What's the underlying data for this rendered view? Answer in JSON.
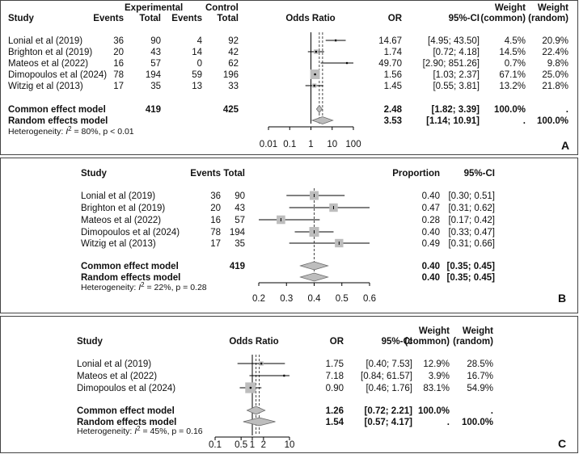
{
  "chart_data": [
    {
      "type": "forest",
      "panel_label": "A",
      "measure": "Odds Ratio",
      "scale": "log",
      "xlim": [
        0.01,
        100
      ],
      "ticks": [
        "0.01",
        "0.1",
        "1",
        "10",
        "100"
      ],
      "headers": {
        "study": "Study",
        "exp_group": "Experimental",
        "ctrl_group": "Control",
        "events": "Events",
        "total": "Total",
        "plot": "Odds Ratio",
        "est": "OR",
        "ci": "95%-CI",
        "weight": "Weight",
        "common": "(common)",
        "random": "(random)"
      },
      "studies": [
        {
          "name": "Lonial et al (2019)",
          "e_events": "36",
          "e_total": "90",
          "c_events": "4",
          "c_total": "92",
          "est": 14.67,
          "lo": 4.95,
          "hi": 43.5,
          "est_text": "14.67",
          "ci_text": "[4.95; 43.50]",
          "w_common": "4.5%",
          "w_random": "20.9%"
        },
        {
          "name": "Brighton et al (2019)",
          "e_events": "20",
          "e_total": "43",
          "c_events": "14",
          "c_total": "42",
          "est": 1.74,
          "lo": 0.72,
          "hi": 4.18,
          "est_text": "1.74",
          "ci_text": "[0.72; 4.18]",
          "w_common": "14.5%",
          "w_random": "22.4%"
        },
        {
          "name": "Mateos et al (2022)",
          "e_events": "16",
          "e_total": "57",
          "c_events": "0",
          "c_total": "62",
          "est": 49.7,
          "lo": 2.9,
          "hi": 851.26,
          "est_text": "49.70",
          "ci_text": "[2.90; 851.26]",
          "w_common": "0.7%",
          "w_random": "9.8%"
        },
        {
          "name": "Dimopoulos et al (2024)",
          "e_events": "78",
          "e_total": "194",
          "c_events": "59",
          "c_total": "196",
          "est": 1.56,
          "lo": 1.03,
          "hi": 2.37,
          "est_text": "1.56",
          "ci_text": "[1.03; 2.37]",
          "w_common": "67.1%",
          "w_random": "25.0%"
        },
        {
          "name": "Witzig et al (2013)",
          "e_events": "17",
          "e_total": "35",
          "c_events": "13",
          "c_total": "33",
          "est": 1.45,
          "lo": 0.55,
          "hi": 3.81,
          "est_text": "1.45",
          "ci_text": "[0.55; 3.81]",
          "w_common": "13.2%",
          "w_random": "21.8%"
        }
      ],
      "pooled": [
        {
          "name": "Common effect model",
          "e_total": "419",
          "c_total": "425",
          "est": 2.48,
          "lo": 1.82,
          "hi": 3.39,
          "est_text": "2.48",
          "ci_text": "[1.82; 3.39]",
          "w_common": "100.0%",
          "w_random": "."
        },
        {
          "name": "Random effects model",
          "e_total": "",
          "c_total": "",
          "est": 3.53,
          "lo": 1.14,
          "hi": 10.91,
          "est_text": "3.53",
          "ci_text": "[1.14; 10.91]",
          "w_common": ".",
          "w_random": "100.0%"
        }
      ],
      "heterogeneity": {
        "prefix": "Heterogeneity: ",
        "i2_symbol": "I",
        "i2_sup": "2",
        "suffix": " = 80%, p < 0.01"
      }
    },
    {
      "type": "forest",
      "panel_label": "B",
      "measure": "Proportion",
      "scale": "linear",
      "xlim": [
        0.2,
        0.6
      ],
      "ticks": [
        "0.2",
        "0.3",
        "0.4",
        "0.5",
        "0.6"
      ],
      "headers": {
        "study": "Study",
        "events": "Events",
        "total": "Total",
        "est": "Proportion",
        "ci": "95%-CI"
      },
      "studies": [
        {
          "name": "Lonial et al (2019)",
          "events": "36",
          "total": "90",
          "est": 0.4,
          "lo": 0.3,
          "hi": 0.51,
          "est_text": "0.40",
          "ci_text": "[0.30; 0.51]"
        },
        {
          "name": "Brighton et al (2019)",
          "events": "20",
          "total": "43",
          "est": 0.47,
          "lo": 0.31,
          "hi": 0.62,
          "est_text": "0.47",
          "ci_text": "[0.31; 0.62]"
        },
        {
          "name": "Mateos et al (2022)",
          "events": "16",
          "total": "57",
          "est": 0.28,
          "lo": 0.17,
          "hi": 0.42,
          "est_text": "0.28",
          "ci_text": "[0.17; 0.42]"
        },
        {
          "name": "Dimopoulos et al (2024)",
          "events": "78",
          "total": "194",
          "est": 0.4,
          "lo": 0.33,
          "hi": 0.47,
          "est_text": "0.40",
          "ci_text": "[0.33; 0.47]"
        },
        {
          "name": "Witzig et al (2013)",
          "events": "17",
          "total": "35",
          "est": 0.49,
          "lo": 0.31,
          "hi": 0.66,
          "est_text": "0.49",
          "ci_text": "[0.31; 0.66]"
        }
      ],
      "pooled": [
        {
          "name": "Common effect model",
          "total": "419",
          "est": 0.4,
          "lo": 0.35,
          "hi": 0.45,
          "est_text": "0.40",
          "ci_text": "[0.35; 0.45]"
        },
        {
          "name": "Random effects model",
          "total": "",
          "est": 0.4,
          "lo": 0.35,
          "hi": 0.45,
          "est_text": "0.40",
          "ci_text": "[0.35; 0.45]"
        }
      ],
      "heterogeneity": {
        "prefix": "Heterogeneity: ",
        "i2_symbol": "I",
        "i2_sup": "2",
        "suffix": " = 22%, p = 0.28"
      }
    },
    {
      "type": "forest",
      "panel_label": "C",
      "measure": "Odds Ratio",
      "scale": "log",
      "xlim": [
        0.1,
        10
      ],
      "ticks": [
        "0.1",
        "0.5",
        "1",
        "2",
        "10"
      ],
      "headers": {
        "study": "Study",
        "plot": "Odds Ratio",
        "est": "OR",
        "ci": "95%-CI",
        "weight": "Weight",
        "common": "(common)",
        "random": "(random)"
      },
      "studies": [
        {
          "name": "Lonial et al (2019)",
          "est": 1.75,
          "lo": 0.4,
          "hi": 7.53,
          "est_text": "1.75",
          "ci_text": "[0.40; 7.53]",
          "w_common": "12.9%",
          "w_random": "28.5%"
        },
        {
          "name": "Mateos et al (2022)",
          "est": 7.18,
          "lo": 0.84,
          "hi": 61.57,
          "est_text": "7.18",
          "ci_text": "[0.84; 61.57]",
          "w_common": "3.9%",
          "w_random": "16.7%"
        },
        {
          "name": "Dimopoulos et al (2024)",
          "est": 0.9,
          "lo": 0.46,
          "hi": 1.76,
          "est_text": "0.90",
          "ci_text": "[0.46; 1.76]",
          "w_common": "83.1%",
          "w_random": "54.9%"
        }
      ],
      "pooled": [
        {
          "name": "Common effect model",
          "est": 1.26,
          "lo": 0.72,
          "hi": 2.21,
          "est_text": "1.26",
          "ci_text": "[0.72; 2.21]",
          "w_common": "100.0%",
          "w_random": "."
        },
        {
          "name": "Random effects model",
          "est": 1.54,
          "lo": 0.57,
          "hi": 4.17,
          "est_text": "1.54",
          "ci_text": "[0.57; 4.17]",
          "w_common": ".",
          "w_random": "100.0%"
        }
      ],
      "heterogeneity": {
        "prefix": "Heterogeneity: ",
        "i2_symbol": "I",
        "i2_sup": "2",
        "suffix": " = 45%, p = 0.16"
      }
    }
  ]
}
